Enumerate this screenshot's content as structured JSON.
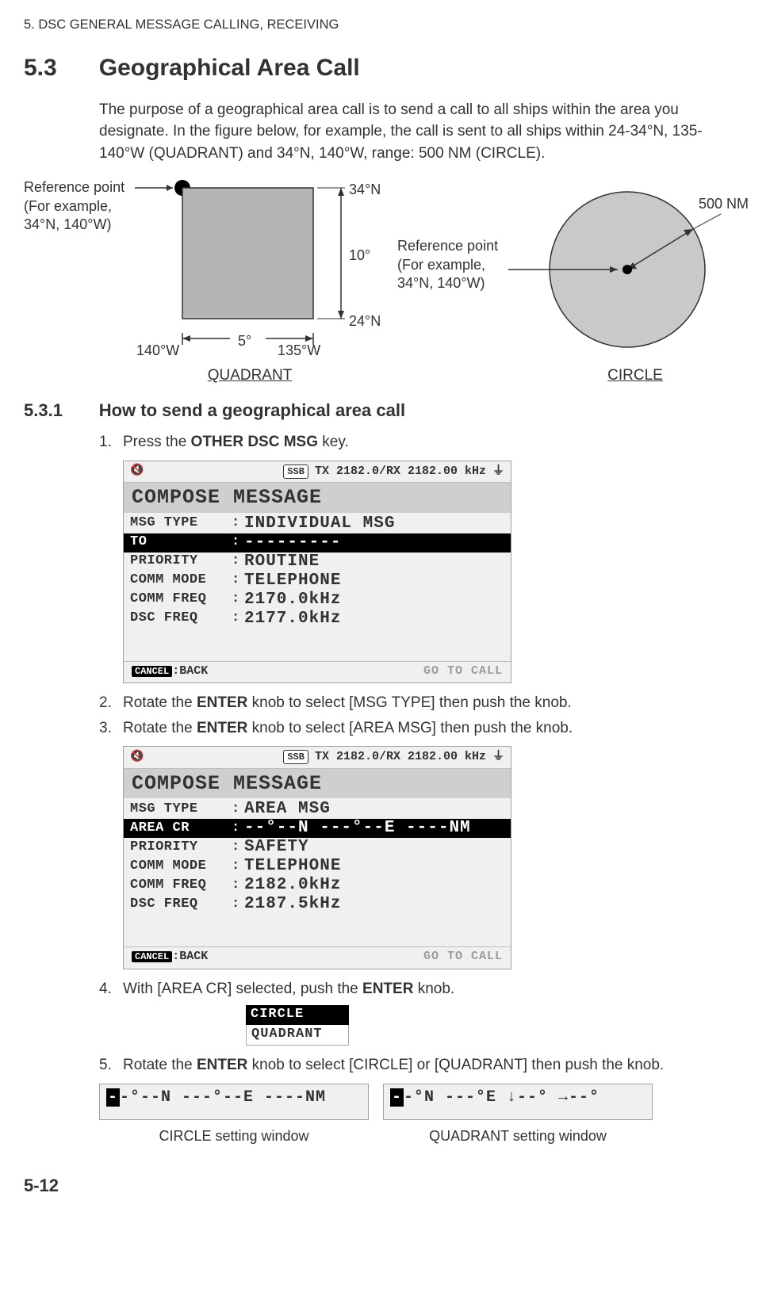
{
  "header": "5.  DSC GENERAL MESSAGE CALLING, RECEIVING",
  "section": {
    "num": "5.3",
    "title": "Geographical Area Call"
  },
  "intro": "The purpose of a geographical area call is to send a call to all ships within the area you designate. In the figure below, for example, the call is sent to all ships within 24-34°N, 135-140°W (QUADRANT) and 34°N, 140°W, range: 500 NM (CIRCLE).",
  "quadrant_diagram": {
    "ref_label": "Reference point\n(For example,\n34°N, 140°W)",
    "top_lat": "34°N",
    "bot_lat": "24°N",
    "lat_span": "10°",
    "left_lon": "140°W",
    "right_lon": "135°W",
    "lon_span": "5°",
    "caption": "QUADRANT",
    "fill": "#b5b5b5",
    "stroke": "#323232"
  },
  "circle_diagram": {
    "ref_label": "Reference point\n(For example,\n34°N, 140°W)",
    "radius_label": "500 NM",
    "caption": "CIRCLE",
    "fill": "#c9c9c9",
    "stroke": "#323232"
  },
  "subsection": {
    "num": "5.3.1",
    "title": "How to send a geographical area call"
  },
  "steps": {
    "s1": {
      "pre": "Press the ",
      "bold": "OTHER DSC MSG",
      "post": " key."
    },
    "s2": {
      "pre": "Rotate the ",
      "bold": "ENTER",
      "post": " knob to select [MSG TYPE] then push the knob."
    },
    "s3": {
      "pre": "Rotate the ",
      "bold": "ENTER",
      "post": " knob to select [AREA MSG] then push the knob."
    },
    "s4": {
      "pre": "With [AREA CR] selected, push the ",
      "bold": "ENTER",
      "post": " knob."
    },
    "s5": {
      "pre": "Rotate the ",
      "bold": "ENTER",
      "post": " knob to select [CIRCLE] or [QUADRANT] then push the knob."
    }
  },
  "lcd1": {
    "ssb": "SSB",
    "txrx": "TX 2182.0/RX 2182.00 kHz",
    "title": "COMPOSE MESSAGE",
    "rows": [
      {
        "k": "MSG TYPE",
        "v": "INDIVIDUAL MSG",
        "inv": false
      },
      {
        "k": "TO",
        "v": "---------",
        "inv": true
      },
      {
        "k": "PRIORITY",
        "v": "ROUTINE",
        "inv": false
      },
      {
        "k": "COMM MODE",
        "v": "TELEPHONE",
        "inv": false
      },
      {
        "k": "COMM FREQ",
        "v": " 2170.0kHz",
        "inv": false
      },
      {
        "k": "DSC FREQ",
        "v": " 2177.0kHz",
        "inv": false
      }
    ],
    "foot_cancel": "CANCEL",
    "foot_back": ":BACK",
    "foot_go": "GO TO CALL"
  },
  "lcd2": {
    "ssb": "SSB",
    "txrx": "TX 2182.0/RX 2182.00 kHz",
    "title": "COMPOSE MESSAGE",
    "rows": [
      {
        "k": "MSG TYPE",
        "v": "AREA MSG",
        "inv": false
      },
      {
        "k": "AREA CR",
        "v": "--°--N ---°--E ----NM",
        "inv": true
      },
      {
        "k": "PRIORITY",
        "v": "SAFETY",
        "inv": false
      },
      {
        "k": "COMM MODE",
        "v": "TELEPHONE",
        "inv": false
      },
      {
        "k": "COMM FREQ",
        "v": " 2182.0kHz",
        "inv": false
      },
      {
        "k": "DSC FREQ",
        "v": " 2187.5kHz",
        "inv": false
      }
    ],
    "foot_cancel": "CANCEL",
    "foot_back": ":BACK",
    "foot_go": "GO TO CALL"
  },
  "mini_menu": {
    "opt1": "CIRCLE",
    "opt2": "QUADRANT"
  },
  "circle_setting": {
    "first": "-",
    "rest": "-°--N ---°--E ----NM",
    "caption": "CIRCLE setting window"
  },
  "quadrant_setting": {
    "first": "-",
    "rest": "-°N ---°E ↓--° →--°",
    "caption": "QUADRANT setting window"
  },
  "page_num": "5-12"
}
